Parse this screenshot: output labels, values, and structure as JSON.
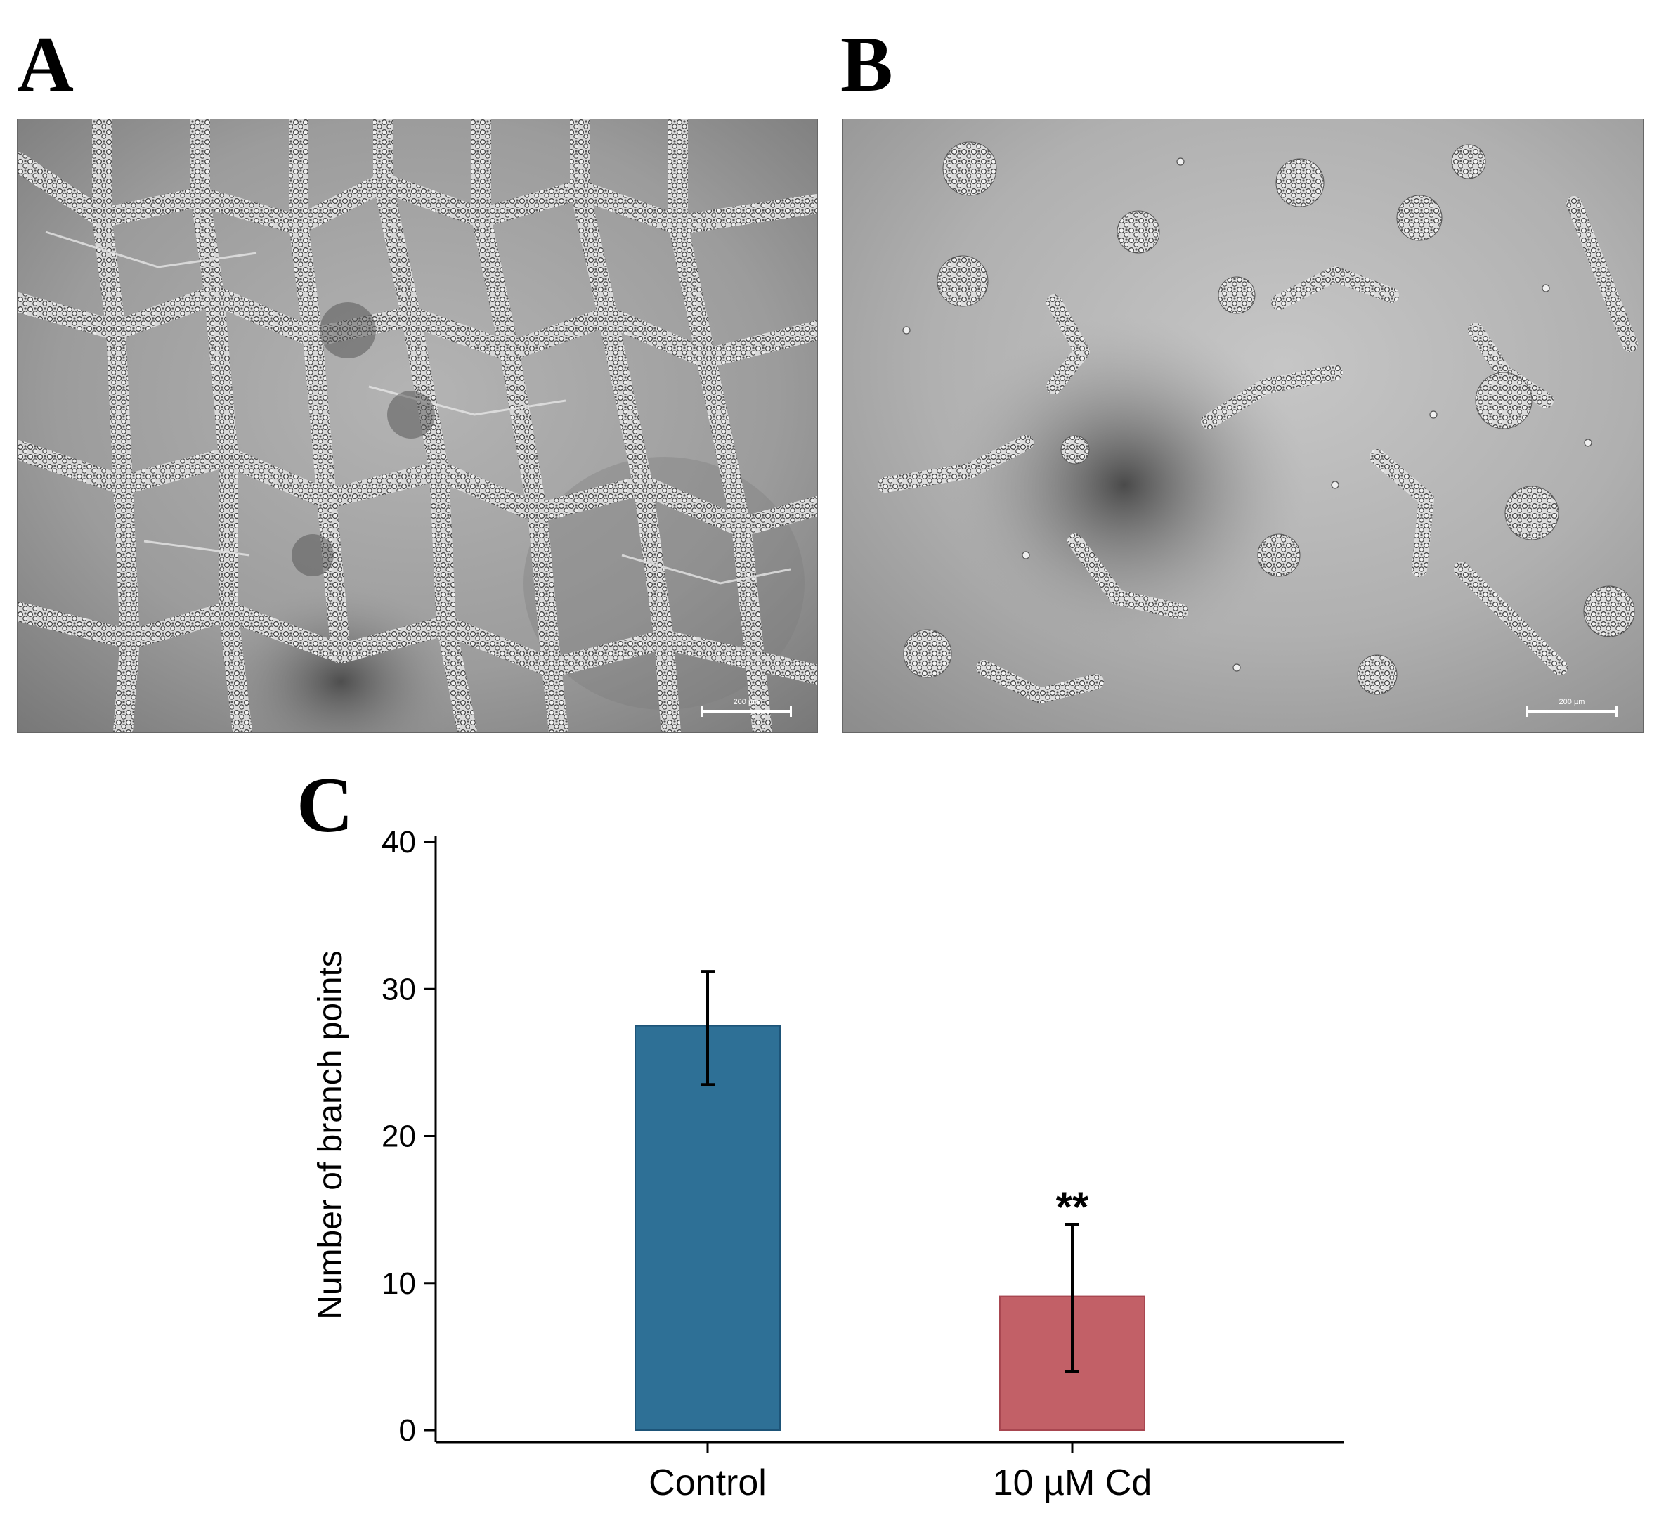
{
  "panels": {
    "a": {
      "letter": "A",
      "scale_bar": "200 µm"
    },
    "b": {
      "letter": "B",
      "scale_bar": "200 µm"
    },
    "c": {
      "letter": "C"
    }
  },
  "chart_data": {
    "type": "bar",
    "categories": [
      "Control",
      "10 µM Cd"
    ],
    "values": [
      27.5,
      9.1
    ],
    "error_low": [
      23.5,
      4.0
    ],
    "error_high": [
      31.2,
      14.0
    ],
    "annotations": [
      "",
      "**"
    ],
    "bar_colors": [
      "#2e7096",
      "#c26067"
    ],
    "bar_edge_colors": [
      "#1d5478",
      "#a84650"
    ],
    "ylabel": "Number of branch points",
    "xlabel": "",
    "ylim": [
      0,
      40
    ],
    "yticks": [
      0,
      10,
      20,
      30,
      40
    ],
    "grid": false,
    "legend": "none"
  }
}
